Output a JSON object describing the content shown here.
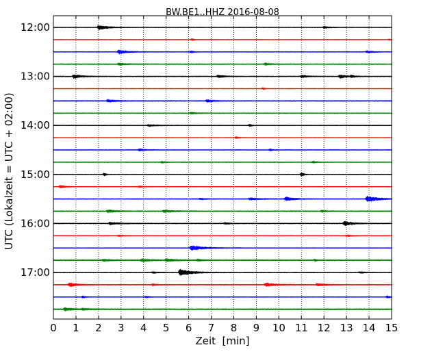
{
  "chart_data": {
    "type": "line",
    "title": "BW.BE1..HHZ 2016-08-08",
    "xlabel": "Zeit  [min]",
    "ylabel": "UTC (Lokalzeit = UTC + 02:00)",
    "xlim": [
      0,
      15
    ],
    "x_ticks": [
      "0",
      "1",
      "2",
      "3",
      "4",
      "5",
      "6",
      "7",
      "8",
      "9",
      "10",
      "11",
      "12",
      "13",
      "14",
      "15"
    ],
    "y_ticks": [
      "12:00",
      "13:00",
      "14:00",
      "15:00",
      "16:00",
      "17:00"
    ],
    "grid": "vertical dotted",
    "trace_interval_min": 15,
    "trace_colors": [
      "#000000",
      "#ff0000",
      "#0000ff",
      "#008000"
    ],
    "traces": [
      {
        "start": "12:00",
        "noise": 0.45,
        "events": [
          [
            2.0,
            3.2,
            0.6
          ],
          [
            12.0,
            1.4,
            0.3
          ]
        ]
      },
      {
        "start": "12:15",
        "noise": 0.35,
        "events": [
          [
            6.15,
            1.6,
            0.1
          ],
          [
            14.9,
            1.0,
            0.1
          ]
        ]
      },
      {
        "start": "12:30",
        "noise": 0.45,
        "events": [
          [
            2.9,
            3.2,
            0.5
          ],
          [
            6.1,
            1.6,
            0.15
          ],
          [
            13.9,
            1.4,
            0.4
          ]
        ]
      },
      {
        "start": "12:45",
        "noise": 0.6,
        "events": [
          [
            2.9,
            1.6,
            0.4
          ],
          [
            9.4,
            1.6,
            0.3
          ]
        ]
      },
      {
        "start": "13:00",
        "noise": 0.5,
        "events": [
          [
            0.9,
            3.0,
            0.5
          ],
          [
            7.3,
            2.0,
            0.4
          ],
          [
            11.0,
            1.8,
            0.4
          ],
          [
            12.7,
            2.6,
            0.4
          ],
          [
            13.2,
            1.4,
            0.3
          ]
        ]
      },
      {
        "start": "13:15",
        "noise": 0.35,
        "events": [
          [
            9.3,
            1.6,
            0.1
          ]
        ]
      },
      {
        "start": "13:30",
        "noise": 0.6,
        "events": [
          [
            2.4,
            1.8,
            0.5
          ],
          [
            6.8,
            1.6,
            0.4
          ]
        ]
      },
      {
        "start": "13:45",
        "noise": 0.55,
        "events": [
          [
            6.1,
            1.4,
            0.3
          ]
        ]
      },
      {
        "start": "14:00",
        "noise": 0.45,
        "events": [
          [
            4.2,
            1.2,
            0.6
          ],
          [
            8.7,
            1.5,
            0.15
          ]
        ]
      },
      {
        "start": "14:15",
        "noise": 0.35,
        "events": [
          [
            8.1,
            1.6,
            0.15
          ]
        ]
      },
      {
        "start": "14:30",
        "noise": 0.45,
        "events": [
          [
            3.8,
            1.6,
            0.35
          ],
          [
            9.6,
            1.5,
            0.15
          ]
        ]
      },
      {
        "start": "14:45",
        "noise": 0.5,
        "events": [
          [
            4.8,
            1.3,
            0.2
          ],
          [
            11.5,
            1.2,
            0.3
          ]
        ]
      },
      {
        "start": "15:00",
        "noise": 0.45,
        "events": [
          [
            2.25,
            2.6,
            0.1
          ],
          [
            11.0,
            3.0,
            0.15
          ]
        ]
      },
      {
        "start": "15:15",
        "noise": 0.4,
        "events": [
          [
            0.3,
            2.0,
            0.3
          ],
          [
            3.8,
            1.2,
            0.2
          ]
        ]
      },
      {
        "start": "15:30",
        "noise": 0.5,
        "events": [
          [
            6.5,
            1.2,
            0.3
          ],
          [
            8.7,
            1.6,
            0.6
          ],
          [
            10.3,
            3.0,
            0.5
          ],
          [
            13.9,
            4.2,
            0.7
          ]
        ]
      },
      {
        "start": "15:45",
        "noise": 0.7,
        "events": [
          [
            2.4,
            1.8,
            0.5
          ],
          [
            4.9,
            1.8,
            0.5
          ],
          [
            11.9,
            1.3,
            0.3
          ]
        ]
      },
      {
        "start": "16:00",
        "noise": 0.5,
        "events": [
          [
            2.5,
            1.8,
            0.6
          ],
          [
            7.6,
            1.2,
            0.3
          ],
          [
            12.9,
            3.4,
            0.5
          ]
        ]
      },
      {
        "start": "16:15",
        "noise": 0.45,
        "events": [
          [
            2.9,
            1.0,
            0.3
          ],
          [
            13.0,
            1.2,
            0.3
          ]
        ]
      },
      {
        "start": "16:30",
        "noise": 0.45,
        "events": [
          [
            6.1,
            3.6,
            0.8
          ]
        ]
      },
      {
        "start": "16:45",
        "noise": 0.7,
        "events": [
          [
            2.2,
            1.4,
            0.5
          ],
          [
            3.9,
            1.8,
            0.6
          ],
          [
            5.0,
            1.8,
            0.6
          ],
          [
            6.4,
            1.2,
            0.3
          ],
          [
            11.6,
            1.6,
            0.1
          ]
        ]
      },
      {
        "start": "17:00",
        "noise": 0.5,
        "events": [
          [
            5.6,
            4.6,
            0.8
          ],
          [
            4.4,
            1.2,
            0.3
          ],
          [
            13.6,
            1.0,
            0.3
          ]
        ]
      },
      {
        "start": "17:15",
        "noise": 0.5,
        "events": [
          [
            0.7,
            3.0,
            0.5
          ],
          [
            4.4,
            1.5,
            0.2
          ],
          [
            9.4,
            2.4,
            0.7
          ],
          [
            11.7,
            2.0,
            0.5
          ]
        ]
      },
      {
        "start": "17:30",
        "noise": 0.45,
        "events": [
          [
            1.3,
            1.4,
            0.15
          ],
          [
            4.1,
            1.6,
            0.15
          ],
          [
            14.8,
            1.5,
            0.2
          ]
        ]
      },
      {
        "start": "17:45",
        "noise": 0.8,
        "events": [
          [
            0.5,
            2.0,
            0.5
          ],
          [
            1.3,
            1.2,
            0.4
          ]
        ]
      }
    ]
  }
}
